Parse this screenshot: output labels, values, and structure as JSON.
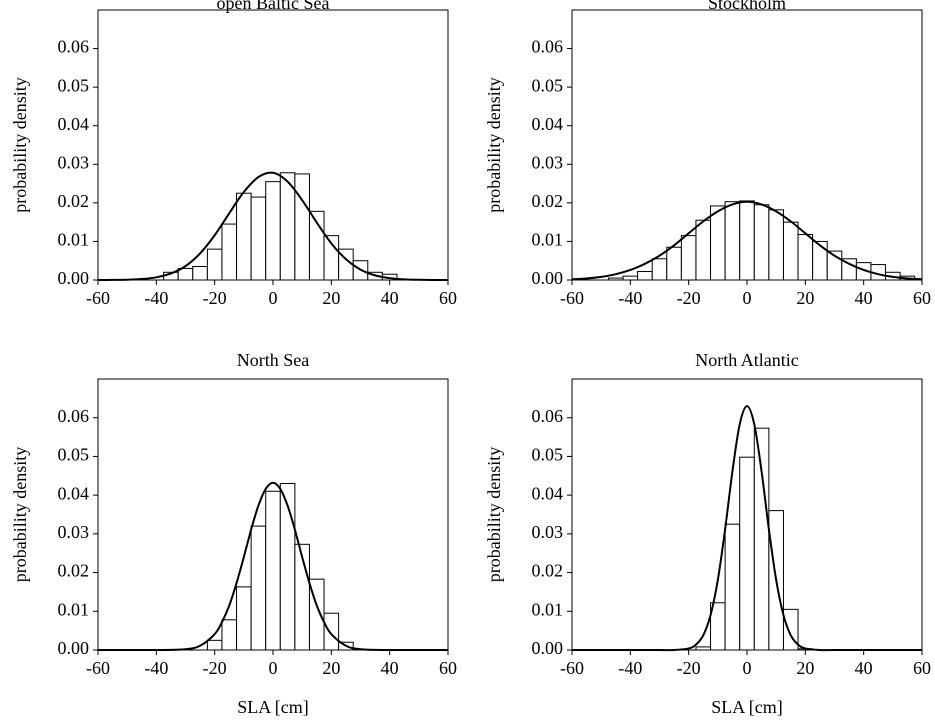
{
  "chart_data": [
    {
      "type": "histogram",
      "title": "open Baltic Sea",
      "ylabel": "probability density",
      "color": "#000000",
      "bins": [
        -37.5,
        -32.5,
        -27.5,
        -22.5,
        -17.5,
        -12.5,
        -7.5,
        -2.5,
        2.5,
        7.5,
        12.5,
        17.5,
        22.5,
        27.5,
        32.5,
        37.5,
        42.5
      ],
      "values": [
        0.002,
        0.003,
        0.0035,
        0.008,
        0.0145,
        0.0225,
        0.0215,
        0.0255,
        0.0278,
        0.0275,
        0.0178,
        0.0115,
        0.008,
        0.005,
        0.002,
        0.0015
      ],
      "density_x": [
        -60,
        -55,
        -50,
        -45,
        -40,
        -35,
        -30,
        -25,
        -20,
        -15,
        -10,
        -5,
        0,
        5,
        10,
        15,
        20,
        25,
        30,
        35,
        40,
        45,
        50,
        55,
        60
      ],
      "density_y": [
        0,
        2e-05,
        8e-05,
        0.00025,
        0.0007,
        0.0017,
        0.0036,
        0.0069,
        0.0116,
        0.0173,
        0.0228,
        0.0267,
        0.0278,
        0.0255,
        0.0207,
        0.0149,
        0.0095,
        0.0054,
        0.0027,
        0.0012,
        0.0005,
        0.00016,
        5e-05,
        1e-05,
        0
      ],
      "xlim": [
        -60,
        60
      ],
      "xticks": [
        -60,
        -40,
        -20,
        0,
        20,
        40,
        60
      ],
      "ylim": [
        0,
        0.07
      ],
      "yticks": [
        {
          "value": 0,
          "label": "0.00"
        },
        {
          "value": 0.01,
          "label": "0.01"
        },
        {
          "value": 0.02,
          "label": "0.02"
        },
        {
          "value": 0.03,
          "label": "0.03"
        },
        {
          "value": 0.04,
          "label": "0.04"
        },
        {
          "value": 0.05,
          "label": "0.05"
        },
        {
          "value": 0.06,
          "label": "0.06"
        }
      ]
    },
    {
      "type": "histogram",
      "title": "Stockholm",
      "ylabel": "probability density",
      "color": "#000000",
      "bins": [
        -47.5,
        -42.5,
        -37.5,
        -32.5,
        -27.5,
        -22.5,
        -17.5,
        -12.5,
        -7.5,
        -2.5,
        2.5,
        7.5,
        12.5,
        17.5,
        22.5,
        27.5,
        32.5,
        37.5,
        42.5,
        47.5,
        52.5,
        57.5
      ],
      "values": [
        0.0005,
        0.001,
        0.0022,
        0.0055,
        0.0085,
        0.0115,
        0.0155,
        0.0192,
        0.0203,
        0.0205,
        0.0195,
        0.0182,
        0.015,
        0.0118,
        0.01,
        0.0075,
        0.0055,
        0.0045,
        0.004,
        0.002,
        0.001
      ],
      "density_x": [
        -60,
        -55,
        -50,
        -45,
        -40,
        -35,
        -30,
        -25,
        -20,
        -15,
        -10,
        -5,
        0,
        5,
        10,
        15,
        20,
        25,
        30,
        35,
        40,
        45,
        50,
        55,
        60
      ],
      "density_y": [
        0.0002,
        0.0004,
        0.0008,
        0.0015,
        0.0026,
        0.0042,
        0.0063,
        0.009,
        0.0121,
        0.0152,
        0.0178,
        0.0196,
        0.0203,
        0.0196,
        0.0178,
        0.0152,
        0.0121,
        0.009,
        0.0063,
        0.0042,
        0.0026,
        0.0015,
        0.0008,
        0.0004,
        0.0002
      ],
      "xlim": [
        -60,
        60
      ],
      "xticks": [
        -60,
        -40,
        -20,
        0,
        20,
        40,
        60
      ],
      "ylim": [
        0,
        0.07
      ],
      "yticks": [
        {
          "value": 0,
          "label": "0.00"
        },
        {
          "value": 0.01,
          "label": "0.01"
        },
        {
          "value": 0.02,
          "label": "0.02"
        },
        {
          "value": 0.03,
          "label": "0.03"
        },
        {
          "value": 0.04,
          "label": "0.04"
        },
        {
          "value": 0.05,
          "label": "0.05"
        },
        {
          "value": 0.06,
          "label": "0.06"
        }
      ]
    },
    {
      "type": "histogram",
      "title": "North Sea",
      "ylabel": "probability density",
      "xlabel": "SLA [cm]",
      "color": "#000000",
      "bins": [
        -22.5,
        -17.5,
        -12.5,
        -7.5,
        -2.5,
        2.5,
        7.5,
        12.5,
        17.5,
        22.5,
        27.5
      ],
      "values": [
        0.0025,
        0.0078,
        0.0163,
        0.032,
        0.041,
        0.043,
        0.0273,
        0.0183,
        0.0095,
        0.002
      ],
      "density_x": [
        -60,
        -40,
        -30,
        -25,
        -20,
        -17.5,
        -15,
        -12.5,
        -10,
        -7.5,
        -5,
        -2.5,
        0,
        2.5,
        5,
        7.5,
        10,
        12.5,
        15,
        17.5,
        20,
        25,
        30,
        40,
        60
      ],
      "density_y": [
        0,
        0,
        0.0002,
        0.0011,
        0.0041,
        0.0072,
        0.0115,
        0.0173,
        0.024,
        0.0311,
        0.0373,
        0.0416,
        0.0432,
        0.0416,
        0.0373,
        0.0311,
        0.024,
        0.0173,
        0.0115,
        0.0072,
        0.0041,
        0.0011,
        0.0002,
        0,
        0
      ],
      "xlim": [
        -60,
        60
      ],
      "xticks": [
        -60,
        -40,
        -20,
        0,
        20,
        40,
        60
      ],
      "ylim": [
        0,
        0.07
      ],
      "yticks": [
        {
          "value": 0,
          "label": "0.00"
        },
        {
          "value": 0.01,
          "label": "0.01"
        },
        {
          "value": 0.02,
          "label": "0.02"
        },
        {
          "value": 0.03,
          "label": "0.03"
        },
        {
          "value": 0.04,
          "label": "0.04"
        },
        {
          "value": 0.05,
          "label": "0.05"
        },
        {
          "value": 0.06,
          "label": "0.06"
        }
      ]
    },
    {
      "type": "histogram",
      "title": "North Atlantic",
      "ylabel": "probability density",
      "xlabel": "SLA [cm]",
      "color": "#000000",
      "bins": [
        -17.5,
        -12.5,
        -7.5,
        -2.5,
        2.5,
        7.5,
        12.5,
        17.5,
        22.5
      ],
      "values": [
        0.0008,
        0.0122,
        0.0325,
        0.0498,
        0.0573,
        0.036,
        0.0105,
        0.0003
      ],
      "density_x": [
        -60,
        -40,
        -30,
        -25,
        -20,
        -17.5,
        -15,
        -12.5,
        -10,
        -7.5,
        -5,
        -2.5,
        0,
        2.5,
        5,
        7.5,
        10,
        12.5,
        15,
        17.5,
        20,
        25,
        30,
        40,
        60
      ],
      "density_y": [
        0,
        0,
        0,
        0,
        0.0004,
        0.0014,
        0.0038,
        0.009,
        0.0181,
        0.0312,
        0.0461,
        0.0583,
        0.063,
        0.0583,
        0.0461,
        0.0312,
        0.0181,
        0.009,
        0.0038,
        0.0014,
        0.0004,
        0,
        0,
        0,
        0
      ],
      "xlim": [
        -60,
        60
      ],
      "xticks": [
        -60,
        -40,
        -20,
        0,
        20,
        40,
        60
      ],
      "ylim": [
        0,
        0.07
      ],
      "yticks": [
        {
          "value": 0,
          "label": "0.00"
        },
        {
          "value": 0.01,
          "label": "0.01"
        },
        {
          "value": 0.02,
          "label": "0.02"
        },
        {
          "value": 0.03,
          "label": "0.03"
        },
        {
          "value": 0.04,
          "label": "0.04"
        },
        {
          "value": 0.05,
          "label": "0.05"
        },
        {
          "value": 0.06,
          "label": "0.06"
        }
      ]
    }
  ]
}
